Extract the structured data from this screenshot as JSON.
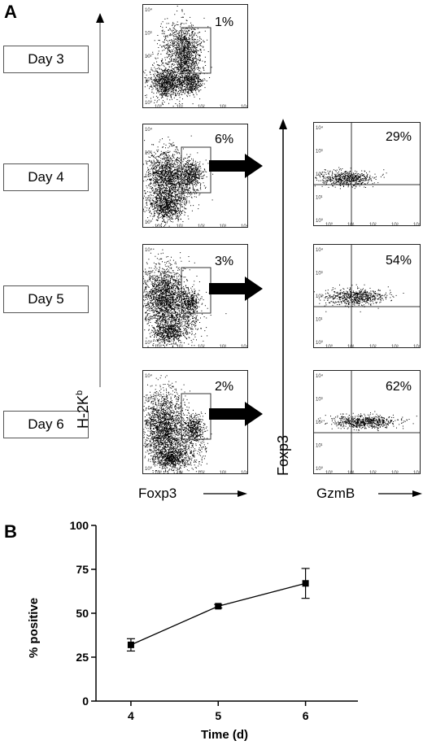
{
  "panel_a": {
    "label": "A",
    "y_axis_label": "H-2K",
    "y_axis_sup": "b",
    "x_axis_left": "Foxp3",
    "y_axis_right": "Foxp3",
    "x_axis_right": "GzmB",
    "days": [
      {
        "label": "Day 3",
        "left_pct": "1%",
        "right_pct": null
      },
      {
        "label": "Day 4",
        "left_pct": "6%",
        "right_pct": "29%"
      },
      {
        "label": "Day 5",
        "left_pct": "3%",
        "right_pct": "54%"
      },
      {
        "label": "Day 6",
        "left_pct": "2%",
        "right_pct": "62%"
      }
    ],
    "tick_labels": [
      "10⁰",
      "10¹",
      "10²",
      "10³",
      "10⁴"
    ]
  },
  "panel_b": {
    "label": "B"
  },
  "chart_data": {
    "type": "line",
    "title": "",
    "xlabel": "Time (d)",
    "ylabel": "% positive",
    "categories": [
      "4",
      "5",
      "6"
    ],
    "x": [
      4,
      5,
      6
    ],
    "values": [
      32,
      54,
      67
    ],
    "error": [
      3.5,
      1,
      8.5
    ],
    "ylim": [
      0,
      100
    ],
    "yticks": [
      0,
      25,
      50,
      75,
      100
    ],
    "grid": false
  }
}
